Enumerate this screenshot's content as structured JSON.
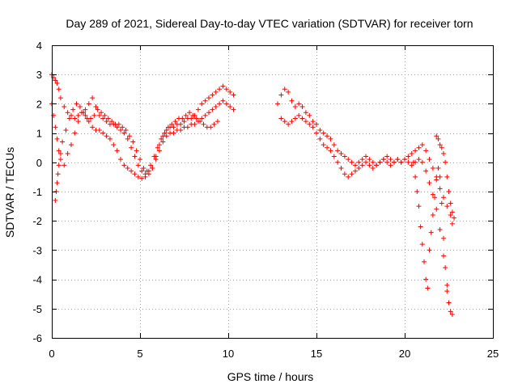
{
  "chart_data": {
    "type": "scatter",
    "title": "Day 289 of 2021, Sidereal Day-to-day VTEC variation (SDTVAR) for receiver torn",
    "xlabel": "GPS time / hours",
    "ylabel": "SDTVAR / TECUs",
    "xlim": [
      0,
      25
    ],
    "ylim": [
      -6,
      4
    ],
    "xticks": [
      0,
      5,
      10,
      15,
      20,
      25
    ],
    "yticks": [
      -6,
      -5,
      -4,
      -3,
      -2,
      -1,
      0,
      1,
      2,
      3,
      4
    ],
    "grid": true,
    "marker": "plus",
    "color": "#ff0000",
    "series": [
      {
        "name": "SDTVAR",
        "x": [
          0.0,
          0.1,
          0.2,
          0.3,
          0.4,
          0.5,
          0.7,
          0.9,
          1.1,
          1.3,
          1.5,
          1.7,
          1.9,
          2.1,
          2.3,
          2.5,
          2.7,
          2.9,
          3.1,
          3.3,
          3.5,
          3.7,
          3.9,
          4.1,
          4.3,
          4.5,
          4.7,
          4.9,
          5.1,
          5.3,
          5.5,
          5.7,
          5.9,
          6.1,
          6.3,
          6.5,
          6.7,
          6.9,
          7.1,
          7.3,
          7.5,
          7.7,
          7.9,
          8.1,
          8.3,
          8.5,
          8.7,
          8.9,
          9.1,
          9.3,
          9.5,
          9.7,
          9.9,
          10.1,
          10.3
        ],
        "y": [
          3.0,
          2.9,
          2.8,
          2.7,
          2.5,
          2.2,
          1.9,
          1.7,
          1.6,
          1.5,
          1.6,
          1.7,
          1.8,
          2.0,
          2.2,
          1.9,
          1.6,
          1.5,
          1.4,
          1.3,
          1.3,
          1.2,
          1.1,
          1.0,
          0.8,
          0.5,
          0.2,
          -0.1,
          -0.3,
          -0.4,
          -0.3,
          -0.2,
          0.2,
          0.6,
          0.9,
          1.1,
          1.2,
          1.2,
          1.3,
          1.3,
          1.4,
          1.5,
          1.5,
          1.6,
          1.8,
          2.0,
          2.1,
          2.2,
          2.3,
          2.4,
          2.5,
          2.6,
          2.5,
          2.4,
          2.3
        ]
      },
      {
        "name": "SDTVAR",
        "x": [
          0.0,
          0.1,
          0.2,
          0.3,
          0.4,
          0.5,
          0.7,
          0.9,
          1.1,
          1.3,
          1.5,
          1.7,
          1.9,
          2.1,
          2.3,
          2.5,
          2.7,
          2.9,
          3.1,
          3.3,
          3.5,
          3.7,
          3.9,
          4.1,
          4.3,
          4.5,
          4.7,
          4.9,
          5.1,
          5.3,
          5.5,
          5.7,
          5.9,
          6.1,
          6.3,
          6.5,
          6.7,
          6.9,
          7.1,
          7.3,
          7.5,
          7.7,
          7.9,
          8.1,
          8.3,
          8.5,
          8.7,
          8.9,
          9.1,
          9.3,
          9.5,
          9.7,
          9.9,
          10.1,
          10.3
        ],
        "y": [
          2.0,
          1.6,
          1.2,
          0.8,
          0.4,
          0.1,
          -0.1,
          0.3,
          0.6,
          1.0,
          1.4,
          1.7,
          1.6,
          1.4,
          1.2,
          1.1,
          1.1,
          1.0,
          0.9,
          0.8,
          0.6,
          0.4,
          0.1,
          -0.1,
          -0.2,
          -0.3,
          -0.4,
          -0.5,
          -0.55,
          -0.5,
          -0.4,
          -0.2,
          0.1,
          0.4,
          0.7,
          0.9,
          1.0,
          1.0,
          1.1,
          1.1,
          1.2,
          1.2,
          1.3,
          1.3,
          1.4,
          1.5,
          1.6,
          1.7,
          1.8,
          1.9,
          2.0,
          2.1,
          2.0,
          1.9,
          1.8
        ]
      },
      {
        "name": "SDTVAR",
        "x": [
          0.2,
          0.25,
          0.3,
          0.35,
          0.4,
          0.5,
          0.6,
          0.8,
          1.0,
          1.2,
          1.4,
          1.6,
          1.8,
          2.0,
          2.2,
          2.4,
          2.6,
          2.8,
          3.0,
          3.2,
          3.4,
          3.6,
          3.8,
          4.0,
          4.2,
          4.4,
          4.6,
          4.8,
          5.0,
          5.2,
          5.4,
          5.6,
          5.8,
          6.0,
          6.2,
          6.4,
          6.6,
          6.8,
          7.0,
          7.2,
          7.4,
          7.6,
          7.8,
          8.0,
          8.2,
          8.4,
          8.6,
          8.8,
          9.0,
          9.2,
          9.4
        ],
        "y": [
          -1.3,
          -1.0,
          -0.7,
          -0.4,
          -0.1,
          0.3,
          0.7,
          1.1,
          1.5,
          1.8,
          2.0,
          1.9,
          1.7,
          1.5,
          1.5,
          1.6,
          1.8,
          1.7,
          1.6,
          1.5,
          1.4,
          1.3,
          1.3,
          1.2,
          1.1,
          0.9,
          0.7,
          0.4,
          0.1,
          -0.2,
          -0.3,
          -0.1,
          0.2,
          0.5,
          0.8,
          1.0,
          1.2,
          1.3,
          1.4,
          1.5,
          1.5,
          1.6,
          1.7,
          1.6,
          1.5,
          1.4,
          1.3,
          1.2,
          1.2,
          1.3,
          1.4
        ]
      },
      {
        "name": "SDTVAR",
        "x": [
          12.8,
          13.0,
          13.2,
          13.4,
          13.6,
          13.8,
          14.0,
          14.2,
          14.4,
          14.6,
          14.8,
          15.0,
          15.2,
          15.4,
          15.6,
          15.8,
          16.0,
          16.2,
          16.4,
          16.6,
          16.8,
          17.0,
          17.2,
          17.4,
          17.6,
          17.8,
          18.0,
          18.2,
          18.4,
          18.6,
          18.8,
          19.0,
          19.2,
          19.4,
          19.6,
          19.8,
          20.0,
          20.2,
          20.4,
          20.6,
          20.8,
          21.0,
          21.2,
          21.4,
          21.6,
          21.8,
          22.0,
          22.2,
          22.4,
          22.6,
          22.7
        ],
        "y": [
          2.0,
          2.3,
          2.5,
          2.4,
          2.1,
          1.9,
          2.0,
          1.9,
          1.7,
          1.6,
          1.4,
          1.3,
          1.1,
          1.0,
          0.9,
          0.8,
          0.6,
          0.4,
          0.3,
          0.2,
          0.1,
          0.0,
          -0.1,
          0.0,
          0.1,
          0.2,
          0.1,
          0.0,
          -0.1,
          0.0,
          0.1,
          0.2,
          0.1,
          0.0,
          0.1,
          0.0,
          0.1,
          0.2,
          0.3,
          0.4,
          0.5,
          0.6,
          0.4,
          0.1,
          -0.2,
          -0.5,
          -0.9,
          -1.2,
          -1.5,
          -1.8,
          -2.1
        ]
      },
      {
        "name": "SDTVAR",
        "x": [
          13.0,
          13.2,
          13.4,
          13.6,
          13.8,
          14.0,
          14.2,
          14.4,
          14.6,
          14.8,
          15.0,
          15.2,
          15.4,
          15.6,
          15.8,
          16.0,
          16.2,
          16.4,
          16.6,
          16.8,
          17.0,
          17.2,
          17.4,
          17.6,
          17.8,
          18.0,
          18.2,
          18.4,
          18.6,
          18.8,
          19.0,
          19.2,
          19.4,
          19.6,
          19.8,
          20.0,
          20.2,
          20.4,
          20.6,
          20.8,
          21.0,
          21.2,
          21.4,
          21.6,
          21.8,
          22.0,
          22.2,
          22.4
        ],
        "y": [
          1.5,
          1.4,
          1.3,
          1.4,
          1.5,
          1.6,
          1.5,
          1.4,
          1.3,
          1.2,
          1.0,
          0.8,
          0.6,
          0.5,
          0.4,
          0.2,
          0.0,
          -0.2,
          -0.4,
          -0.5,
          -0.4,
          -0.3,
          -0.2,
          -0.1,
          0.0,
          -0.1,
          -0.2,
          -0.1,
          0.0,
          0.1,
          0.0,
          -0.1,
          0.0,
          0.1,
          0.0,
          0.1,
          0.0,
          -0.1,
          0.0,
          0.1,
          0.0,
          -0.3,
          -0.7,
          -1.1,
          -1.6,
          -2.3,
          -3.2,
          -4.2
        ]
      },
      {
        "name": "SDTVAR",
        "x": [
          20.5,
          20.6,
          20.7,
          20.8,
          20.9,
          21.0,
          21.1,
          21.2,
          21.3,
          21.4,
          21.5,
          21.6,
          21.7,
          21.8,
          21.9,
          22.0,
          22.1,
          22.2,
          22.3,
          22.4,
          22.5,
          22.6,
          22.7
        ],
        "y": [
          0.0,
          -0.5,
          -1.0,
          -1.5,
          -2.2,
          -2.8,
          -3.4,
          -4.0,
          -4.3,
          -3.0,
          -2.4,
          -1.8,
          -1.2,
          -0.6,
          -0.2,
          -0.5,
          -1.4,
          -2.6,
          -3.6,
          -4.4,
          -4.8,
          -5.1,
          -5.2
        ]
      },
      {
        "name": "SDTVAR",
        "x": [
          21.8,
          21.9,
          22.0,
          22.1,
          22.2,
          22.3,
          22.4,
          22.5,
          22.6,
          22.7,
          22.8
        ],
        "y": [
          0.9,
          0.8,
          0.6,
          0.5,
          0.3,
          0.0,
          -0.5,
          -1.0,
          -1.4,
          -1.7,
          -1.9
        ]
      }
    ]
  }
}
